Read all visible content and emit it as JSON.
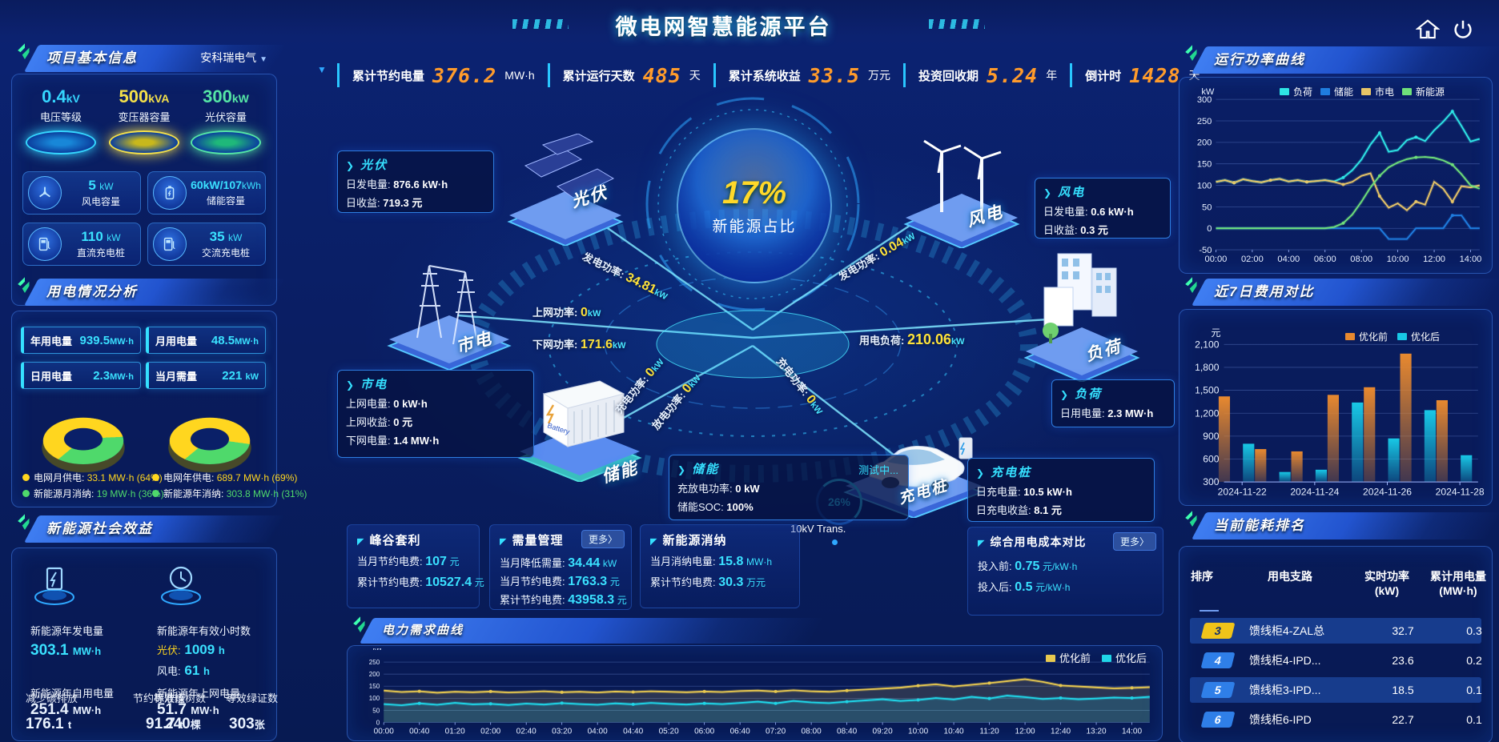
{
  "header": {
    "title": "微电网智慧能源平台"
  },
  "top_stats": [
    {
      "label": "累计节约电量",
      "value": "376.2",
      "unit": "MW·h"
    },
    {
      "label": "累计运行天数",
      "value": "485",
      "unit": "天"
    },
    {
      "label": "累计系统收益",
      "value": "33.5",
      "unit": "万元"
    },
    {
      "label": "投资回收期",
      "value": "5.24",
      "unit": "年"
    },
    {
      "label": "倒计时",
      "value": "1428",
      "unit": "天"
    }
  ],
  "colors": {
    "accent_cyan": "#3ae1ff",
    "accent_yellow": "#ffd829",
    "accent_orange": "#ff9b2b",
    "donut_grid": "#ffd61f",
    "donut_renew": "#4fd96b",
    "badge_yellow": "#f0c419",
    "badge_blue": "#2f7fe8"
  },
  "project_info": {
    "title": "项目基本信息",
    "company": "安科瑞电气",
    "dropdown_icon": "▼",
    "podiums": [
      {
        "value": "0.4",
        "unit": "kV",
        "label": "电压等级",
        "color": "#35d6ff"
      },
      {
        "value": "500",
        "unit": "kVA",
        "label": "变压器容量",
        "color": "#f4e04a"
      },
      {
        "value": "300",
        "unit": "kW",
        "label": "光伏容量",
        "color": "#55e6a5"
      }
    ],
    "cards": [
      {
        "icon": "wind-icon",
        "value": "5",
        "unit": "kW",
        "label": "风电容量"
      },
      {
        "icon": "battery-icon",
        "value": "60kW/107",
        "unit": "kWh",
        "label": "储能容量"
      },
      {
        "icon": "dc-charger-icon",
        "value": "110",
        "unit": "kW",
        "label": "直流充电桩"
      },
      {
        "icon": "ac-charger-icon",
        "value": "35",
        "unit": "kW",
        "label": "交流充电桩"
      }
    ]
  },
  "usage_analysis": {
    "title": "用电情况分析",
    "stats": [
      {
        "label": "年用电量",
        "value": "939.5",
        "unit": "MW·h"
      },
      {
        "label": "月用电量",
        "value": "48.5",
        "unit": "MW·h"
      },
      {
        "label": "日用电量",
        "value": "2.3",
        "unit": "MW·h"
      },
      {
        "label": "当月需量",
        "value": "221",
        "unit": "kW"
      }
    ],
    "donut_month": {
      "grid_pct": 64,
      "renew_pct": 36
    },
    "donut_year": {
      "grid_pct": 69,
      "renew_pct": 31
    },
    "legend": [
      {
        "label": "电网月供电:",
        "value": "33.1 MW·h (64%)",
        "color": "#ffd61f"
      },
      {
        "label": "电网年供电:",
        "value": "689.7 MW·h (69%)",
        "color": "#ffd61f"
      },
      {
        "label": "新能源月消纳:",
        "value": "19 MW·h (36%)",
        "color": "#4fd96b"
      },
      {
        "label": "新能源年消纳:",
        "value": "303.8 MW·h (31%)",
        "color": "#4fd96b"
      }
    ]
  },
  "social_benefit": {
    "title": "新能源社会效益",
    "gen_label": "新能源年发电量",
    "gen_value": "303.1",
    "gen_unit": "MW·h",
    "hours_label": "新能源年有效小时数",
    "pv_label": "光伏:",
    "pv_value": "1009",
    "pv_unit": "h",
    "wind_label": "风电:",
    "wind_value": "61",
    "wind_unit": "h",
    "self_label": "新能源年自用电量",
    "self_value": "251.4",
    "self_unit": "MW·h",
    "co2_label": "减少碳排放",
    "co2_value": "176.1",
    "co2_unit": "t",
    "coal_label": "节约标准煤",
    "coal_value": "91.7",
    "coal_unit": "t",
    "export_label": "新能源年上网电量",
    "export_value": "51.7",
    "export_unit": "MW·h",
    "tree_label": "等效植树数",
    "tree_value": "240",
    "tree_unit": "棵",
    "cert_label": "等效绿证数",
    "cert_value": "303",
    "cert_unit": "张"
  },
  "diagram": {
    "center_pct": "17%",
    "center_label": "新能源占比",
    "gauge_pct": "26%",
    "gauge_label": "10kV Trans.",
    "nodes": {
      "pv": "光伏",
      "grid": "市电",
      "storage": "储能",
      "wind": "风电",
      "load": "负荷",
      "charger": "充电桩"
    },
    "flows": [
      {
        "label": "发电功率:",
        "value": "34.81",
        "unit": "kW"
      },
      {
        "label": "上网功率:",
        "value": "0",
        "unit": "kW"
      },
      {
        "label": "下网功率:",
        "value": "171.6",
        "unit": "kW"
      },
      {
        "label": "充电功率:",
        "value": "0",
        "unit": "kW"
      },
      {
        "label": "放电功率:",
        "value": "0",
        "unit": "kW"
      },
      {
        "label": "充电功率:",
        "value": "0",
        "unit": "kW"
      },
      {
        "label": "发电功率:",
        "value": "0.04",
        "unit": "kW"
      },
      {
        "label": "用电负荷:",
        "value": "210.06",
        "unit": "kW"
      }
    ],
    "boxes": {
      "pv": {
        "title": "光伏",
        "r0k": "日发电量:",
        "r0v": "876.6 kW·h",
        "r1k": "日收益:",
        "r1v": "719.3 元"
      },
      "grid": {
        "title": "市电",
        "r0k": "上网电量:",
        "r0v": "0 kW·h",
        "r1k": "上网收益:",
        "r1v": "0 元",
        "r2k": "下网电量:",
        "r2v": "1.4 MW·h"
      },
      "storage": {
        "title": "储能",
        "status": "测试中...",
        "r0k": "充放电功率:",
        "r0v": "0 kW",
        "r1k": "储能SOC:",
        "r1v": "100%"
      },
      "wind": {
        "title": "风电",
        "r0k": "日发电量:",
        "r0v": "0.6 kW·h",
        "r1k": "日收益:",
        "r1v": "0.3 元"
      },
      "load": {
        "title": "负荷",
        "r0k": "日用电量:",
        "r0v": "2.3 MW·h"
      },
      "charger": {
        "title": "充电桩",
        "r0k": "日充电量:",
        "r0v": "10.5 kW·h",
        "r1k": "日充电收益:",
        "r1v": "8.1 元"
      }
    }
  },
  "bottom_panels": [
    {
      "title": "峰谷套利",
      "r0k": "当月节约电费:",
      "r0v": "107",
      "r0u": "元",
      "r1k": "累计节约电费:",
      "r1v": "10527.4",
      "r1u": "元"
    },
    {
      "title": "需量管理",
      "more": "更多〉",
      "r0k": "当月降低需量:",
      "r0v": "34.44",
      "r0u": "kW",
      "r1k": "当月节约电费:",
      "r1v": "1763.3",
      "r1u": "元",
      "r2k": "累计节约电费:",
      "r2v": "43958.3",
      "r2u": "元"
    },
    {
      "title": "新能源消纳",
      "r0k": "当月消纳电量:",
      "r0v": "15.8",
      "r0u": "MW·h",
      "r1k": "累计节约电费:",
      "r1v": "30.3",
      "r1u": "万元"
    },
    {
      "title": "综合用电成本对比",
      "more": "更多〉",
      "r0k": "投入前:",
      "r0v": "0.75",
      "r0u": "元/kW·h",
      "r1k": "投入后:",
      "r1v": "0.5",
      "r1u": "元/kW·h"
    }
  ],
  "ranking": {
    "title": "当前能耗排名",
    "columns": [
      {
        "t": "排序",
        "u": ""
      },
      {
        "t": "用电支路",
        "u": ""
      },
      {
        "t": "实时功率",
        "u": "(kW)"
      },
      {
        "t": "累计用电量",
        "u": "(MW·h)"
      }
    ],
    "rows": [
      {
        "rank": "3",
        "branch": "馈线柜4-ZAL总",
        "power": "32.7",
        "energy": "0.3",
        "badge": "#f0c419",
        "hl": true
      },
      {
        "rank": "4",
        "branch": "馈线柜4-IPD...",
        "power": "23.6",
        "energy": "0.2",
        "badge": "#2f7fe8",
        "hl": false
      },
      {
        "rank": "5",
        "branch": "馈线柜3-IPD...",
        "power": "18.5",
        "energy": "0.1",
        "badge": "#2f7fe8",
        "hl": true
      },
      {
        "rank": "6",
        "branch": "馈线柜6-IPD",
        "power": "22.7",
        "energy": "0.1",
        "badge": "#2f7fe8",
        "hl": false
      }
    ]
  },
  "chart_data": [
    {
      "type": "line",
      "title": "运行功率曲线",
      "ylabel": "kW",
      "ylim": [
        -50,
        300
      ],
      "yticks": [
        -50,
        0,
        50,
        100,
        150,
        200,
        250,
        300
      ],
      "legend_position": "top",
      "grid": true,
      "xtick_labels": [
        "00:00",
        "02:00",
        "04:00",
        "06:00",
        "08:00",
        "10:00",
        "12:00",
        "14:00"
      ],
      "xtick_idx": [
        0,
        4,
        8,
        12,
        16,
        20,
        24,
        28
      ],
      "series": [
        {
          "name": "负荷",
          "color": "#2ee6e6",
          "values": [
            108,
            112,
            106,
            114,
            110,
            107,
            112,
            115,
            109,
            112,
            108,
            110,
            112,
            109,
            118,
            135,
            160,
            195,
            222,
            178,
            182,
            205,
            212,
            203,
            228,
            248,
            272,
            238,
            202,
            208
          ]
        },
        {
          "name": "储能",
          "color": "#1f7de0",
          "values": [
            0,
            0,
            0,
            0,
            0,
            0,
            0,
            0,
            0,
            0,
            0,
            0,
            0,
            0,
            0,
            0,
            0,
            0,
            0,
            -25,
            -25,
            -25,
            0,
            0,
            0,
            0,
            30,
            30,
            0,
            0
          ]
        },
        {
          "name": "市电",
          "color": "#e8c567",
          "values": [
            108,
            112,
            106,
            114,
            110,
            107,
            112,
            115,
            109,
            112,
            108,
            110,
            112,
            108,
            102,
            108,
            122,
            128,
            75,
            48,
            58,
            42,
            62,
            55,
            108,
            92,
            62,
            98,
            95,
            100
          ]
        },
        {
          "name": "新能源",
          "color": "#6fe07a",
          "values": [
            0,
            0,
            0,
            0,
            0,
            0,
            0,
            0,
            0,
            0,
            0,
            0,
            0,
            3,
            12,
            32,
            62,
            95,
            122,
            142,
            153,
            161,
            165,
            166,
            164,
            158,
            148,
            126,
            100,
            92
          ]
        }
      ]
    },
    {
      "type": "bar",
      "title": "近7日费用对比",
      "ylabel": "元",
      "ylim": [
        300,
        2100
      ],
      "yticks": [
        300,
        600,
        900,
        1200,
        1500,
        1800,
        2100
      ],
      "ytick_labels": [
        "300",
        "600",
        "900",
        "1,200",
        "1,500",
        "1,800",
        "2,100"
      ],
      "grid": true,
      "legend_position": "top",
      "categories": [
        "2024-11-22",
        "2024-11-23",
        "2024-11-24",
        "2024-11-25",
        "2024-11-26",
        "2024-11-27",
        "2024-11-28"
      ],
      "xtick_labels": [
        "2024-11-22",
        "2024-11-24",
        "2024-11-26",
        "2024-11-28"
      ],
      "xtick_cat_idx": [
        0,
        2,
        4,
        6
      ],
      "series": [
        {
          "name": "优化前",
          "color": "#e8892f",
          "values": [
            1420,
            730,
            700,
            1440,
            1540,
            1980,
            1370
          ]
        },
        {
          "name": "优化后",
          "color": "#18c8e6",
          "values": [
            800,
            430,
            460,
            1340,
            870,
            1240,
            650
          ]
        }
      ]
    },
    {
      "type": "line",
      "title": "电力需求曲线",
      "ylabel": "kW",
      "ylim": [
        0,
        280
      ],
      "yticks": [
        0,
        50,
        100,
        150,
        200,
        250
      ],
      "grid": true,
      "legend_position": "top-right",
      "xtick_labels": [
        "00:00",
        "00:40",
        "01:20",
        "02:00",
        "02:40",
        "03:20",
        "04:00",
        "04:40",
        "05:20",
        "06:00",
        "06:40",
        "07:20",
        "08:00",
        "08:40",
        "09:20",
        "10:00",
        "10:40",
        "11:20",
        "12:00",
        "12:40",
        "13:20",
        "14:00"
      ],
      "xtick_idx": [
        0,
        2,
        4,
        6,
        8,
        10,
        12,
        14,
        16,
        18,
        20,
        22,
        24,
        26,
        28,
        30,
        32,
        34,
        36,
        38,
        40,
        42
      ],
      "series": [
        {
          "name": "优化前",
          "color": "#e8c94f",
          "area": true,
          "values": [
            132,
            126,
            129,
            123,
            127,
            125,
            128,
            124,
            126,
            129,
            125,
            127,
            124,
            128,
            126,
            129,
            127,
            125,
            128,
            126,
            130,
            132,
            128,
            133,
            129,
            127,
            132,
            136,
            140,
            144,
            152,
            158,
            149,
            156,
            163,
            171,
            179,
            168,
            153,
            149,
            145,
            141,
            143,
            146
          ]
        },
        {
          "name": "优化后",
          "color": "#1fd6e8",
          "area": true,
          "values": [
            76,
            71,
            79,
            73,
            81,
            75,
            77,
            72,
            78,
            74,
            80,
            76,
            73,
            79,
            75,
            81,
            77,
            74,
            79,
            76,
            81,
            86,
            79,
            89,
            83,
            80,
            86,
            91,
            96,
            89,
            93,
            101,
            95,
            106,
            99,
            111,
            105,
            97,
            101,
            96,
            99,
            103,
            101,
            106
          ]
        }
      ]
    }
  ]
}
